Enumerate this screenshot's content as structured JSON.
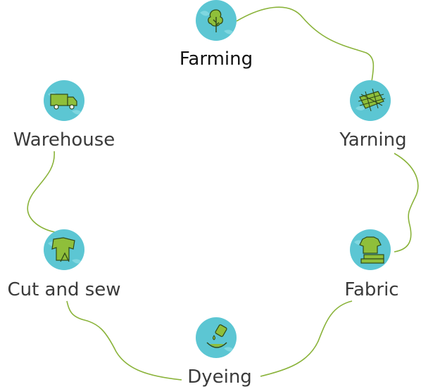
{
  "diagram": {
    "title": "",
    "colors": {
      "connector": "#8ab33a",
      "badge": "#5cc6d3",
      "icon_fill": "#8fbf3a",
      "icon_stroke": "#2f4a1a"
    },
    "steps": [
      {
        "label": "Farming",
        "icon": "tree-icon"
      },
      {
        "label": "Yarning",
        "icon": "yarn-icon"
      },
      {
        "label": "Fabric",
        "icon": "folded-clothes-icon"
      },
      {
        "label": "Dyeing",
        "icon": "dye-drop-icon"
      },
      {
        "label": "Cut and sew",
        "icon": "cut-shirt-icon"
      },
      {
        "label": "Warehouse",
        "icon": "truck-icon"
      }
    ]
  }
}
